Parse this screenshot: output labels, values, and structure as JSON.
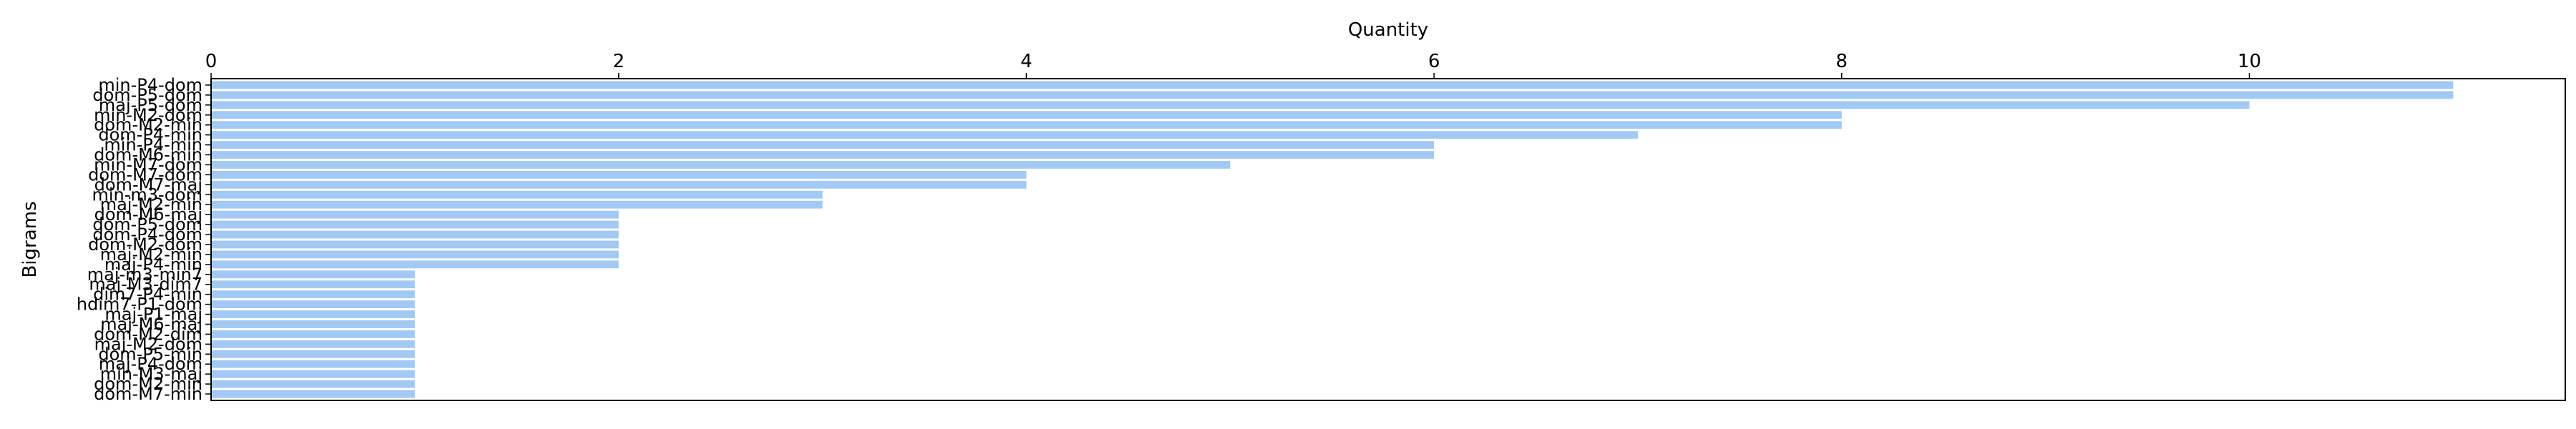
{
  "chart_data": {
    "type": "bar",
    "orientation": "horizontal",
    "xlabel": "Quantity",
    "ylabel": "Bigrams",
    "xlim": [
      0,
      11.55
    ],
    "xticks": [
      0,
      2,
      4,
      6,
      8,
      10
    ],
    "x_axis_position": "top",
    "grid": false,
    "bar_color": "#a1c9f4",
    "categories": [
      "min-P4-dom",
      "dom-P5-dom",
      "maj-P5-dom",
      "min-M2-dom",
      "dom-M2-min",
      "dom-P4-min",
      "min-P4-min",
      "dom-M6-min",
      "min-M7-dom",
      "dom-M7-dom",
      "dom-M7-maj",
      "min-m3-dom",
      "maj-M2-min",
      "dom-M6-maj",
      "dom-P5-dom",
      "dom-P4-dom",
      "dom-M2-dom",
      "maj-M2-min",
      "maj-P4-min",
      "maj-m3-min7",
      "maj-M3-dim7",
      "dim7-P4-min",
      "hdim7-P1-dom",
      "maj-P1-maj",
      "maj-M6-maj",
      "dom-M2-dim",
      "maj-M2-dom",
      "dom-P5-min",
      "maj-P4-dom",
      "min-M3-maj",
      "dom-M2-min",
      "dom-M7-min"
    ],
    "values": [
      11,
      11,
      10,
      8,
      8,
      7,
      6,
      6,
      5,
      4,
      4,
      3,
      3,
      2,
      2,
      2,
      2,
      2,
      2,
      1,
      1,
      1,
      1,
      1,
      1,
      1,
      1,
      1,
      1,
      1,
      1,
      1
    ]
  }
}
